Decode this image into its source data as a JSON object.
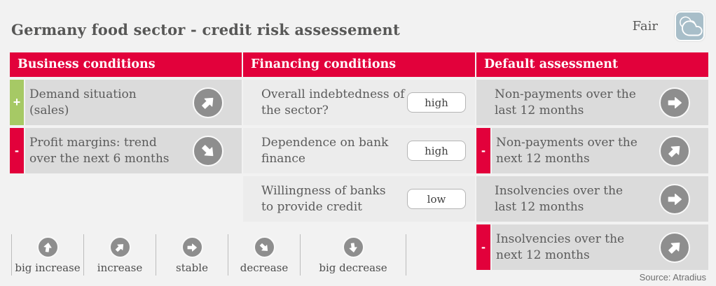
{
  "page": {
    "title": "Germany food sector - credit risk assessement",
    "rating_label": "Fair",
    "rating_icon": "clouds-icon",
    "source": "Source: Atradius"
  },
  "colors": {
    "accent_red": "#e2013b",
    "positive_green": "#a6c965",
    "trend_circle_gray": "#8e8e8e",
    "rating_badge_blue": "#a8bec9"
  },
  "columns": [
    {
      "header": "Business conditions",
      "rows": [
        {
          "marker": "+",
          "text": "Demand situation\n(sales)",
          "trend": "increase"
        },
        {
          "marker": "-",
          "text": "Profit margins: trend\nover the next 6 months",
          "trend": "decrease"
        }
      ]
    },
    {
      "header": "Financing conditions",
      "rows": [
        {
          "text": "Overall indebtedness of\nthe sector?",
          "value": "high"
        },
        {
          "text": "Dependence on bank\nfinance",
          "value": "high"
        },
        {
          "text": "Willingness of banks\nto provide credit",
          "value": "low"
        }
      ]
    },
    {
      "header": "Default assessment",
      "rows": [
        {
          "marker": "",
          "text": "Non-payments over the\nlast 12 months",
          "trend": "stable"
        },
        {
          "marker": "-",
          "text": "Non-payments over the\nnext 12 months",
          "trend": "increase"
        },
        {
          "marker": "",
          "text": "Insolvencies over the\nlast 12 months",
          "trend": "stable"
        },
        {
          "marker": "-",
          "text": "Insolvencies over the\nnext 12 months",
          "trend": "increase"
        }
      ]
    }
  ],
  "legend": [
    {
      "trend": "big-increase",
      "label": "big increase"
    },
    {
      "trend": "increase",
      "label": "increase"
    },
    {
      "trend": "stable",
      "label": "stable"
    },
    {
      "trend": "decrease",
      "label": "decrease"
    },
    {
      "trend": "big-decrease",
      "label": "big decrease"
    }
  ]
}
